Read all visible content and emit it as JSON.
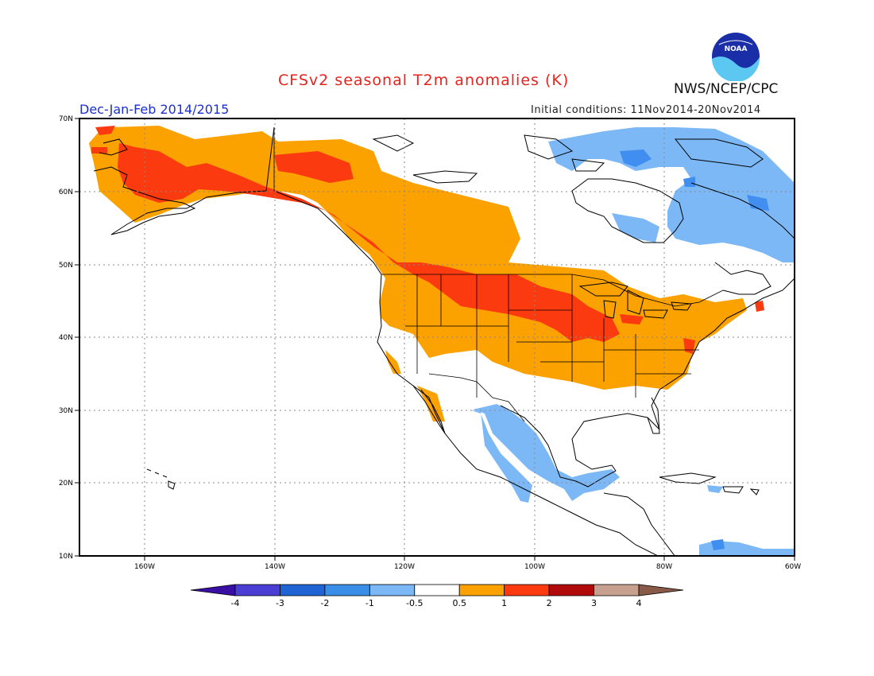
{
  "header": {
    "title": "CFSv2 seasonal T2m anomalies (K)",
    "subtitle": "Dec-Jan-Feb 2014/2015",
    "init_conditions": "Initial conditions: 11Nov2014-20Nov2014",
    "agency": "NWS/NCEP/CPC",
    "logo_text": "NOAA"
  },
  "map": {
    "lat_labels": [
      "70N",
      "60N",
      "50N",
      "40N",
      "30N",
      "20N",
      "10N"
    ],
    "lon_labels": [
      "160W",
      "140W",
      "120W",
      "100W",
      "80W",
      "60W"
    ],
    "colors": {
      "warm_1": "#fba100",
      "warm_2": "#fc3a10",
      "warm_3": "#b10a0a",
      "cool_1": "#7cb8f6",
      "cool_2": "#3f8ef0"
    }
  },
  "colorbar": {
    "tick_labels": [
      "-4",
      "-3",
      "-2",
      "-1",
      "-0.5",
      "0.5",
      "1",
      "2",
      "3",
      "4"
    ],
    "colors": [
      "#3a0fa4",
      "#4a3ed4",
      "#1f63d4",
      "#3b8ee8",
      "#7cb8f6",
      "#ffffff",
      "#fba100",
      "#fc3a10",
      "#b10a0a",
      "#c8a090",
      "#8a5a48"
    ]
  }
}
